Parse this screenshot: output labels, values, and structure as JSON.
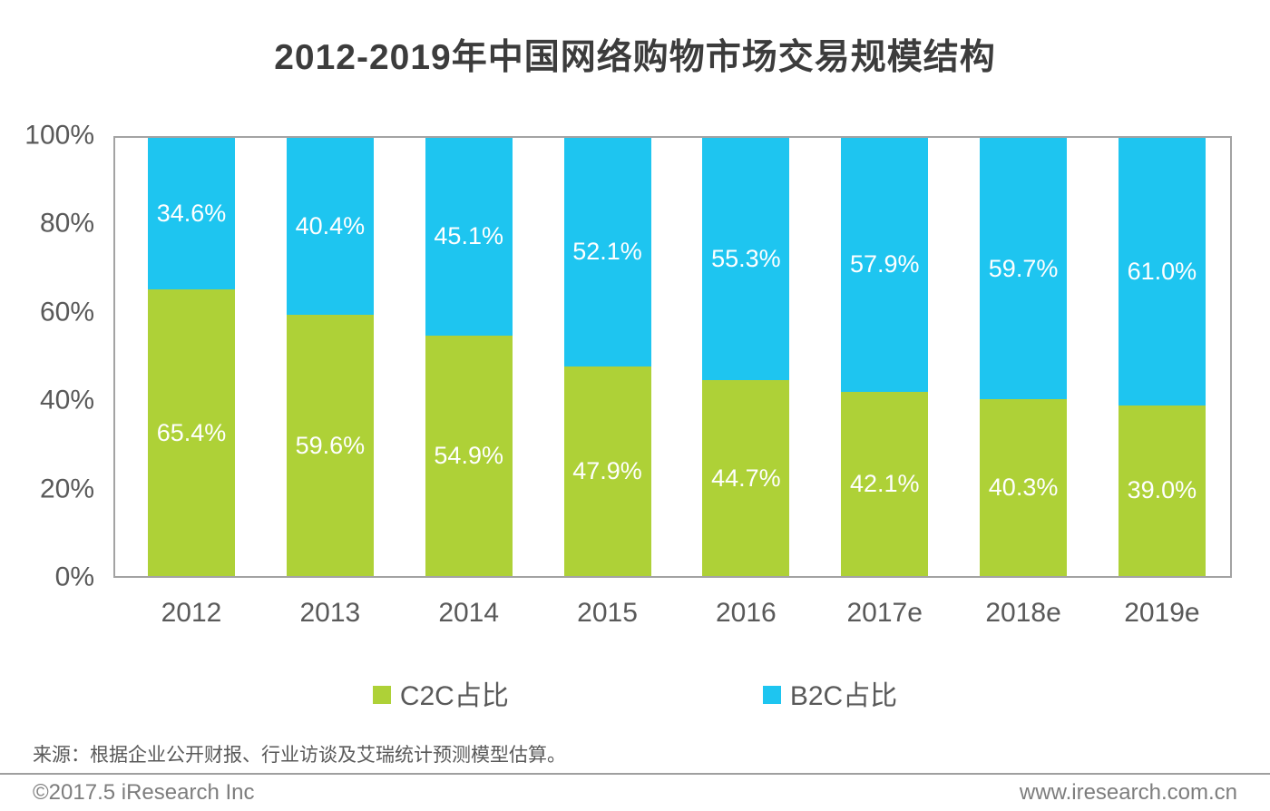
{
  "title": "2012-2019年中国网络购物市场交易规模结构",
  "chart_data": {
    "type": "bar",
    "stacked": true,
    "orientation": "vertical",
    "categories": [
      "2012",
      "2013",
      "2014",
      "2015",
      "2016",
      "2017e",
      "2018e",
      "2019e"
    ],
    "series": [
      {
        "name": "C2C占比",
        "color": "#aed137",
        "values": [
          65.4,
          59.6,
          54.9,
          47.9,
          44.7,
          42.1,
          40.3,
          39.0
        ]
      },
      {
        "name": "B2C占比",
        "color": "#1ec5f0",
        "values": [
          34.6,
          40.4,
          45.1,
          52.1,
          55.3,
          57.9,
          59.7,
          61.0
        ]
      }
    ],
    "value_suffix": "%",
    "ylim": [
      0,
      100
    ],
    "yticks": [
      {
        "value": 0,
        "label": "0%"
      },
      {
        "value": 20,
        "label": "20%"
      },
      {
        "value": 40,
        "label": "40%"
      },
      {
        "value": 60,
        "label": "60%"
      },
      {
        "value": 80,
        "label": "80%"
      },
      {
        "value": 100,
        "label": "100%"
      }
    ],
    "grid": false,
    "legend_position": "bottom",
    "plot_border_color": "#a3a3a3",
    "label_color": "#ffffff"
  },
  "legend": {
    "items": [
      {
        "label": "C2C占比",
        "color": "#aed137"
      },
      {
        "label": "B2C占比",
        "color": "#1ec5f0"
      }
    ]
  },
  "source_note": "来源：根据企业公开财报、行业访谈及艾瑞统计预测模型估算。",
  "footer": {
    "left": "©2017.5 iResearch Inc",
    "right": "www.iresearch.com.cn"
  }
}
